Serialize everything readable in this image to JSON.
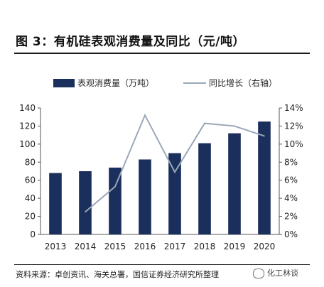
{
  "figure": {
    "title": "图 3：有机硅表观消费量及同比（元/吨）",
    "source": "资料来源：卓创资讯、海关总署，国信证券经济研究所整理",
    "watermark": "化工林谈"
  },
  "chart_data": {
    "type": "bar",
    "categories": [
      "2013",
      "2014",
      "2015",
      "2016",
      "2017",
      "2018",
      "2019",
      "2020"
    ],
    "series": [
      {
        "name": "表观消费量（万吨）",
        "type": "bar",
        "axis": "left",
        "color": "#1b2f5c",
        "values": [
          68,
          70,
          74,
          83,
          90,
          101,
          112,
          125
        ]
      },
      {
        "name": "同比增长（右轴）",
        "type": "line",
        "axis": "right",
        "color": "#9aa7b8",
        "values": [
          null,
          0.025,
          0.053,
          0.132,
          0.069,
          0.123,
          0.12,
          0.109
        ]
      }
    ],
    "y_left": {
      "min": 0,
      "max": 140,
      "step": 20,
      "ticks": [
        "0",
        "20",
        "40",
        "60",
        "80",
        "100",
        "120",
        "140"
      ]
    },
    "y_right": {
      "min": 0,
      "max": 0.14,
      "step": 0.02,
      "ticks": [
        "0%",
        "2%",
        "4%",
        "6%",
        "8%",
        "10%",
        "12%",
        "14%"
      ]
    },
    "legend_position": "top",
    "grid": false
  }
}
